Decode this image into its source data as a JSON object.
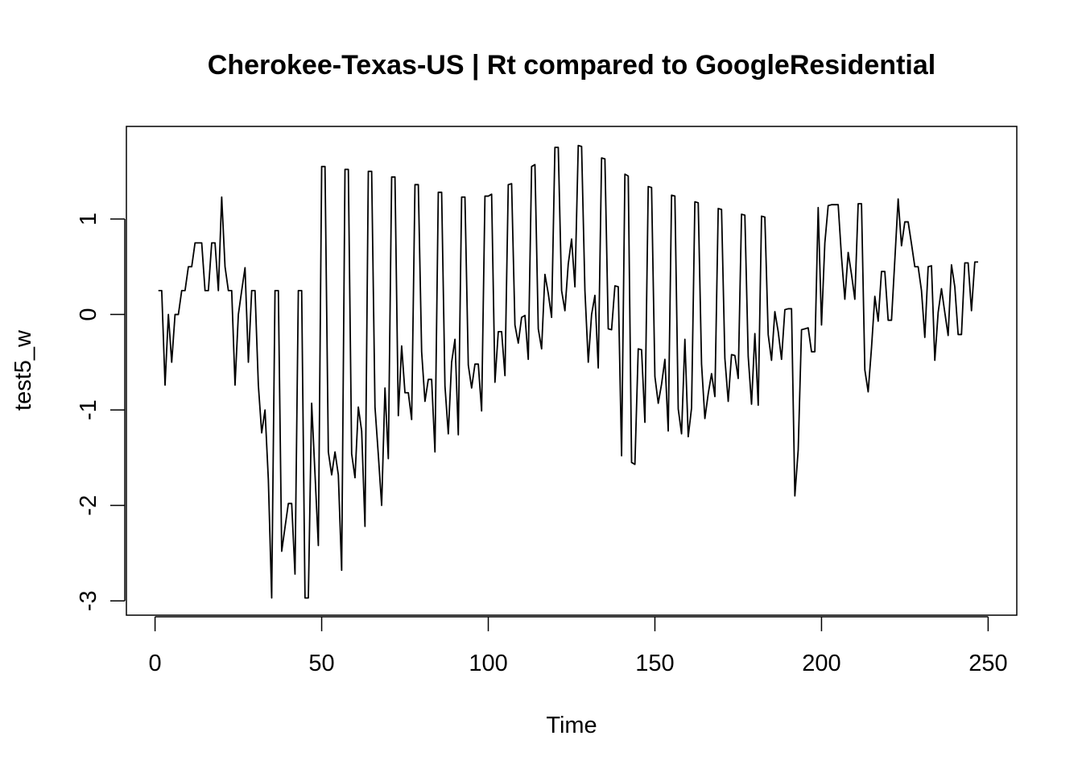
{
  "chart_data": {
    "type": "line",
    "title": "Cherokee-Texas-US | Rt compared to GoogleResidential",
    "xlabel": "Time",
    "ylabel": "test5_w",
    "xlim": [
      -8.6,
      258.6
    ],
    "ylim": [
      -3.15,
      1.97
    ],
    "xticks": [
      0,
      50,
      100,
      150,
      200,
      250
    ],
    "yticks": [
      -3,
      -2,
      -1,
      0,
      1
    ],
    "grid": false,
    "series": [
      {
        "values": [
          0.25,
          0.25,
          -0.74,
          0.0,
          -0.5,
          0.0,
          0.0,
          0.25,
          0.25,
          0.5,
          0.5,
          0.75,
          0.75,
          0.75,
          0.25,
          0.25,
          0.75,
          0.75,
          0.25,
          1.23,
          0.5,
          0.25,
          0.25,
          -0.74,
          0.0,
          0.25,
          0.49,
          -0.5,
          0.25,
          0.25,
          -0.74,
          -1.24,
          -1.0,
          -1.73,
          -2.97,
          0.25,
          0.25,
          -2.48,
          -2.23,
          -1.98,
          -1.98,
          -2.72,
          0.25,
          0.25,
          -2.97,
          -2.97,
          -0.93,
          -1.67,
          -2.42,
          1.55,
          1.55,
          -1.44,
          -1.68,
          -1.44,
          -1.68,
          -2.68,
          1.52,
          1.52,
          -1.46,
          -1.71,
          -0.97,
          -1.22,
          -2.22,
          1.5,
          1.5,
          -0.97,
          -1.47,
          -2.0,
          -0.77,
          -1.51,
          1.44,
          1.44,
          -1.06,
          -0.33,
          -0.82,
          -0.82,
          -1.1,
          1.36,
          1.36,
          -0.39,
          -0.91,
          -0.68,
          -0.68,
          -1.44,
          1.28,
          1.28,
          -0.75,
          -1.25,
          -0.5,
          -0.26,
          -1.26,
          1.23,
          1.23,
          -0.53,
          -0.77,
          -0.52,
          -0.52,
          -1.01,
          1.24,
          1.24,
          1.26,
          -0.71,
          -0.18,
          -0.18,
          -0.64,
          1.36,
          1.37,
          -0.11,
          -0.3,
          -0.03,
          -0.01,
          -0.47,
          1.55,
          1.57,
          -0.15,
          -0.36,
          0.42,
          0.22,
          -0.03,
          1.75,
          1.75,
          0.25,
          0.04,
          0.53,
          0.79,
          0.29,
          1.77,
          1.76,
          0.25,
          -0.5,
          0.0,
          0.2,
          -0.56,
          1.64,
          1.63,
          -0.15,
          -0.16,
          0.3,
          0.29,
          -1.48,
          1.47,
          1.45,
          -1.55,
          -1.57,
          -0.36,
          -0.37,
          -1.13,
          1.34,
          1.33,
          -0.65,
          -0.93,
          -0.73,
          -0.47,
          -1.22,
          1.25,
          1.24,
          -0.99,
          -1.25,
          -0.26,
          -1.28,
          -0.98,
          1.18,
          1.17,
          -0.52,
          -1.09,
          -0.83,
          -0.62,
          -0.86,
          1.11,
          1.1,
          -0.46,
          -0.91,
          -0.42,
          -0.43,
          -0.67,
          1.05,
          1.04,
          -0.44,
          -0.94,
          -0.2,
          -0.95,
          1.03,
          1.02,
          -0.21,
          -0.48,
          0.03,
          -0.18,
          -0.47,
          0.05,
          0.06,
          0.06,
          -1.9,
          -1.42,
          -0.16,
          -0.15,
          -0.14,
          -0.39,
          -0.39,
          1.12,
          -0.11,
          0.75,
          1.14,
          1.15,
          1.15,
          1.15,
          0.6,
          0.16,
          0.65,
          0.42,
          0.16,
          1.16,
          1.16,
          -0.58,
          -0.81,
          -0.35,
          0.19,
          -0.07,
          0.45,
          0.45,
          -0.06,
          -0.06,
          0.57,
          1.21,
          0.72,
          0.97,
          0.97,
          0.74,
          0.5,
          0.5,
          0.25,
          -0.24,
          0.5,
          0.51,
          -0.48,
          0.02,
          0.27,
          0.02,
          -0.22,
          0.52,
          0.29,
          -0.21,
          -0.21,
          0.54,
          0.54,
          0.04,
          0.55,
          0.55
        ]
      }
    ]
  }
}
